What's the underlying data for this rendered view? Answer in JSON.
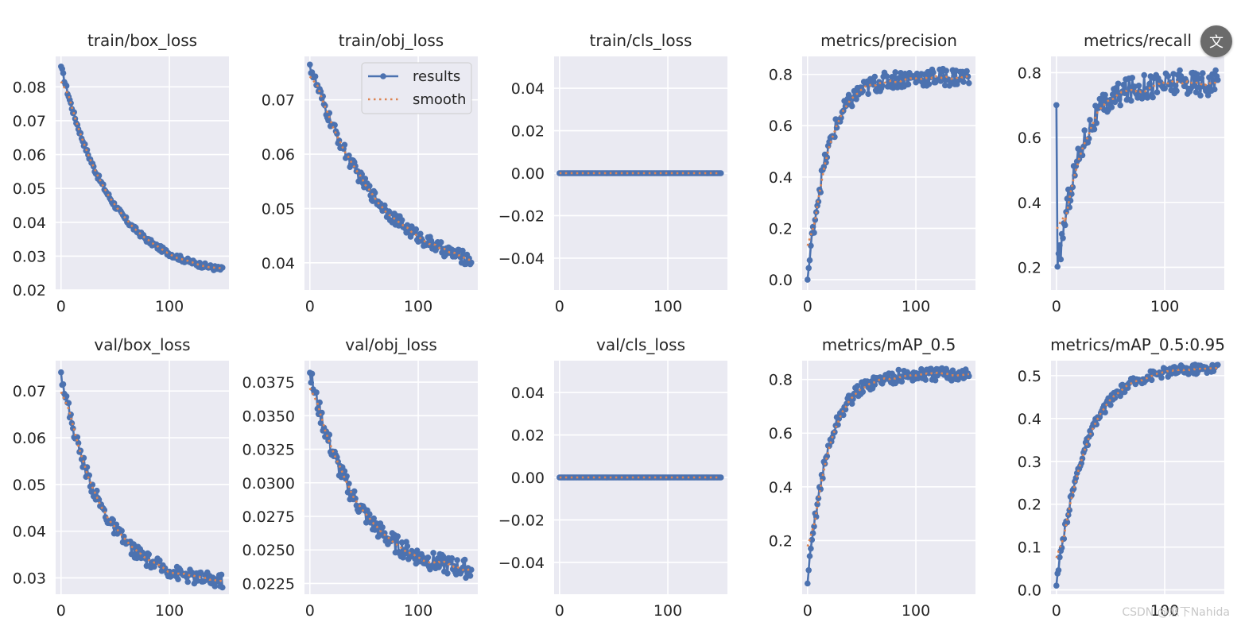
{
  "legend": {
    "results_label": "results",
    "smooth_label": "smooth"
  },
  "watermark": "CSDN @愈下Nahida",
  "translate_button": {
    "glyph": "文"
  },
  "colors": {
    "results": "#4c72b0",
    "smooth": "#dd8452",
    "panel_bg": "#eaeaf2",
    "grid": "#ffffff",
    "text": "#262626"
  },
  "chart_data": [
    {
      "type": "line",
      "title": "train/box_loss",
      "xlim": [
        -5,
        155
      ],
      "ylim": [
        0.02,
        0.089
      ],
      "xticks": [
        0,
        100
      ],
      "yticks": [
        0.02,
        0.03,
        0.04,
        0.05,
        0.06,
        0.07,
        0.08
      ],
      "ytick_labels": [
        "0.02",
        "0.03",
        "0.04",
        "0.05",
        "0.06",
        "0.07",
        "0.08"
      ],
      "curve": {
        "kind": "exp",
        "start": 0.086,
        "end": 0.0235,
        "rate": 3.2,
        "noise": 0.0008
      },
      "legend": false
    },
    {
      "type": "line",
      "title": "train/obj_loss",
      "xlim": [
        -5,
        155
      ],
      "ylim": [
        0.035,
        0.078
      ],
      "xticks": [
        0,
        100
      ],
      "yticks": [
        0.04,
        0.05,
        0.06,
        0.07
      ],
      "ytick_labels": [
        "0.04",
        "0.05",
        "0.06",
        "0.07"
      ],
      "curve": {
        "kind": "exp",
        "start": 0.0765,
        "end": 0.037,
        "rate": 2.4,
        "noise": 0.0012
      },
      "legend": true
    },
    {
      "type": "line",
      "title": "train/cls_loss",
      "xlim": [
        -5,
        155
      ],
      "ylim": [
        -0.055,
        0.055
      ],
      "xticks": [
        0,
        100
      ],
      "yticks": [
        -0.04,
        -0.02,
        0.0,
        0.02,
        0.04
      ],
      "ytick_labels": [
        "−0.04",
        "−0.02",
        "0.00",
        "0.02",
        "0.04"
      ],
      "curve": {
        "kind": "flat",
        "start": 0,
        "end": 0,
        "rate": 1,
        "noise": 0
      },
      "legend": false
    },
    {
      "type": "line",
      "title": "metrics/precision",
      "xlim": [
        -5,
        155
      ],
      "ylim": [
        -0.04,
        0.87
      ],
      "xticks": [
        0,
        100
      ],
      "yticks": [
        0.0,
        0.2,
        0.4,
        0.6,
        0.8
      ],
      "ytick_labels": [
        "0.0",
        "0.2",
        "0.4",
        "0.6",
        "0.8"
      ],
      "curve": {
        "kind": "rise",
        "start": 0.0,
        "end": 0.79,
        "rate": 5.0,
        "noise": 0.035
      },
      "legend": false
    },
    {
      "type": "line",
      "title": "metrics/recall",
      "xlim": [
        -5,
        155
      ],
      "ylim": [
        0.13,
        0.85
      ],
      "xticks": [
        0,
        100
      ],
      "yticks": [
        0.2,
        0.4,
        0.6,
        0.8
      ],
      "ytick_labels": [
        "0.2",
        "0.4",
        "0.6",
        "0.8"
      ],
      "curve": {
        "kind": "rise",
        "start": 0.15,
        "end": 0.77,
        "rate": 4.5,
        "noise": 0.04,
        "first": 0.7
      },
      "legend": false
    },
    {
      "type": "line",
      "title": "val/box_loss",
      "xlim": [
        -5,
        155
      ],
      "ylim": [
        0.0265,
        0.0765
      ],
      "xticks": [
        0,
        100
      ],
      "yticks": [
        0.03,
        0.04,
        0.05,
        0.06,
        0.07
      ],
      "ytick_labels": [
        "0.03",
        "0.04",
        "0.05",
        "0.06",
        "0.07"
      ],
      "curve": {
        "kind": "exp",
        "start": 0.074,
        "end": 0.0285,
        "rate": 4.0,
        "noise": 0.0015
      },
      "legend": false
    },
    {
      "type": "line",
      "title": "val/obj_loss",
      "xlim": [
        -5,
        155
      ],
      "ylim": [
        0.0217,
        0.0391
      ],
      "xticks": [
        0,
        100
      ],
      "yticks": [
        0.0225,
        0.025,
        0.0275,
        0.03,
        0.0325,
        0.035,
        0.0375
      ],
      "ytick_labels": [
        "0.0225",
        "0.0250",
        "0.0275",
        "0.0300",
        "0.0325",
        "0.0350",
        "0.0375"
      ],
      "curve": {
        "kind": "exp",
        "start": 0.0382,
        "end": 0.0231,
        "rate": 3.5,
        "noise": 0.0007
      },
      "legend": false
    },
    {
      "type": "line",
      "title": "val/cls_loss",
      "xlim": [
        -5,
        155
      ],
      "ylim": [
        -0.055,
        0.055
      ],
      "xticks": [
        0,
        100
      ],
      "yticks": [
        -0.04,
        -0.02,
        0.0,
        0.02,
        0.04
      ],
      "ytick_labels": [
        "−0.04",
        "−0.02",
        "0.00",
        "0.02",
        "0.04"
      ],
      "curve": {
        "kind": "flat",
        "start": 0,
        "end": 0,
        "rate": 1,
        "noise": 0
      },
      "legend": false
    },
    {
      "type": "line",
      "title": "metrics/mAP_0.5",
      "xlim": [
        -5,
        155
      ],
      "ylim": [
        0.0,
        0.87
      ],
      "xticks": [
        0,
        100
      ],
      "yticks": [
        0.2,
        0.4,
        0.6,
        0.8
      ],
      "ytick_labels": [
        "0.2",
        "0.4",
        "0.6",
        "0.8"
      ],
      "curve": {
        "kind": "rise",
        "start": 0.04,
        "end": 0.82,
        "rate": 5.0,
        "noise": 0.025
      },
      "legend": false
    },
    {
      "type": "line",
      "title": "metrics/mAP_0.5:0.95",
      "xlim": [
        -5,
        155
      ],
      "ylim": [
        -0.01,
        0.535
      ],
      "xticks": [
        0,
        100
      ],
      "yticks": [
        0.0,
        0.1,
        0.2,
        0.3,
        0.4,
        0.5
      ],
      "ytick_labels": [
        "0.0",
        "0.1",
        "0.2",
        "0.3",
        "0.4",
        "0.5"
      ],
      "curve": {
        "kind": "rise",
        "start": 0.01,
        "end": 0.52,
        "rate": 3.5,
        "noise": 0.012
      },
      "legend": false
    }
  ]
}
